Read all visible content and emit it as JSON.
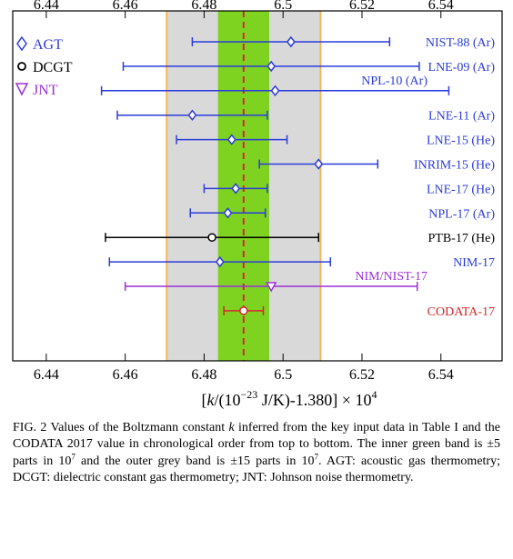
{
  "chart_data": {
    "type": "scatter",
    "xlim": [
      6.4315,
      6.5555
    ],
    "x_ticks": [
      6.44,
      6.46,
      6.48,
      6.5,
      6.52,
      6.54
    ],
    "x_tick_labels": [
      "6.44",
      "6.46",
      "6.48",
      "6.5",
      "6.52",
      "6.54"
    ],
    "xlabel_parts": [
      "[",
      "k",
      "/(10",
      "−23",
      " J/K)-1.380] × 10",
      "4"
    ],
    "grid": false,
    "bands": [
      {
        "name": "outer grey band (±15 parts in 10^7)",
        "x0": 6.4705,
        "x1": 6.5095,
        "color": "#d9d9d9",
        "edge": "#f5b75a"
      },
      {
        "name": "inner green band (±5 parts in 10^7)",
        "x0": 6.4835,
        "x1": 6.4965,
        "color": "#7ed321"
      }
    ],
    "reference_line": {
      "x": 6.49,
      "color": "#d62728"
    },
    "legend": {
      "placement": "top-left",
      "entries": [
        {
          "symbol": "diamond",
          "label": "AGT",
          "color": "#2b3bdb"
        },
        {
          "symbol": "circle",
          "label": "DCGT",
          "color": "#000000"
        },
        {
          "symbol": "triangle-down",
          "label": "JNT",
          "color": "#9b30d9"
        }
      ]
    },
    "series": [
      {
        "label": "NIST-88 (Ar)",
        "method": "AGT",
        "x": 6.502,
        "xerr": 0.025,
        "color": "#2b3bdb",
        "marker": "diamond"
      },
      {
        "label": "LNE-09 (Ar)",
        "method": "AGT",
        "x": 6.497,
        "xerr": 0.0375,
        "color": "#2b3bdb",
        "marker": "diamond"
      },
      {
        "label": "NPL-10 (Ar)",
        "method": "AGT",
        "x": 6.498,
        "xerr": 0.044,
        "color": "#2b3bdb",
        "marker": "diamond"
      },
      {
        "label": "LNE-11 (Ar)",
        "method": "AGT",
        "x": 6.477,
        "xerr": 0.019,
        "color": "#2b3bdb",
        "marker": "diamond"
      },
      {
        "label": "LNE-15 (He)",
        "method": "AGT",
        "x": 6.487,
        "xerr": 0.014,
        "color": "#2b3bdb",
        "marker": "diamond"
      },
      {
        "label": "INRIM-15 (He)",
        "method": "AGT",
        "x": 6.509,
        "xerr": 0.015,
        "color": "#2b3bdb",
        "marker": "diamond"
      },
      {
        "label": "LNE-17 (He)",
        "method": "AGT",
        "x": 6.488,
        "xerr": 0.008,
        "color": "#2b3bdb",
        "marker": "diamond"
      },
      {
        "label": "NPL-17 (Ar)",
        "method": "AGT",
        "x": 6.486,
        "xerr": 0.0095,
        "color": "#2b3bdb",
        "marker": "diamond"
      },
      {
        "label": "PTB-17 (He)",
        "method": "DCGT",
        "x": 6.482,
        "xerr": 0.027,
        "color": "#000000",
        "marker": "circle"
      },
      {
        "label": "NIM-17",
        "method": "AGT",
        "x": 6.484,
        "xerr": 0.028,
        "color": "#2b3bdb",
        "marker": "diamond"
      },
      {
        "label": "NIM/NIST-17",
        "method": "JNT",
        "x": 6.497,
        "xerr": 0.037,
        "color": "#9b30d9",
        "marker": "triangle-down"
      },
      {
        "label": "CODATA-17",
        "method": "CODATA",
        "x": 6.49,
        "xerr": 0.005,
        "color": "#d62728",
        "marker": "circle"
      }
    ]
  },
  "caption": {
    "fig_label": "FIG. 2",
    "part1": " Values of the Boltzmann constant ",
    "k_symbol": "k",
    "part2": " inferred from the key input data in Table I and the CODATA 2017 value in chronological order from top to bottom. The inner green band is ±5 parts in 10",
    "exp_a": "7",
    "part3": " and the outer grey band is ±15 parts in 10",
    "exp_b": "7",
    "part4": ". AGT: acoustic gas thermometry; DCGT: dielectric constant gas thermometry; JNT: Johnson noise thermometry."
  }
}
